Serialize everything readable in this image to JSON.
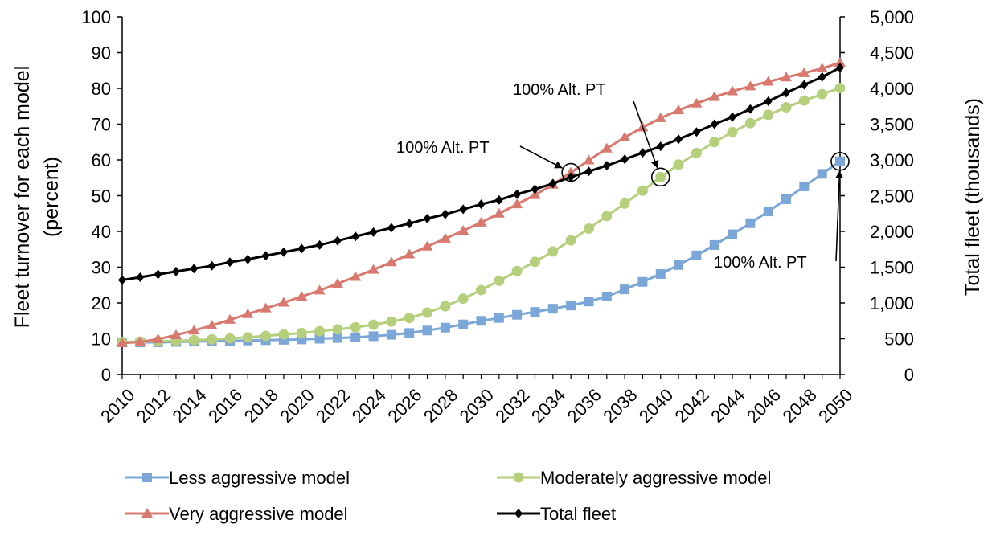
{
  "chart_data": {
    "type": "line",
    "x": [
      2010,
      2011,
      2012,
      2013,
      2014,
      2015,
      2016,
      2017,
      2018,
      2019,
      2020,
      2021,
      2022,
      2023,
      2024,
      2025,
      2026,
      2027,
      2028,
      2029,
      2030,
      2031,
      2032,
      2033,
      2034,
      2035,
      2036,
      2037,
      2038,
      2039,
      2040,
      2041,
      2042,
      2043,
      2044,
      2045,
      2046,
      2047,
      2048,
      2049,
      2050
    ],
    "x_tick_labels": [
      "2010",
      "2012",
      "2014",
      "2016",
      "2018",
      "2020",
      "2022",
      "2024",
      "2026",
      "2028",
      "2030",
      "2032",
      "2034",
      "2036",
      "2038",
      "2040",
      "2042",
      "2044",
      "2046",
      "2048",
      "2050"
    ],
    "ylabel": "Fleet turnover for each model",
    "ylabel_line2": "(percent)",
    "y2label": "Total fleet (thousands)",
    "ylim": [
      0,
      100
    ],
    "y2lim": [
      0,
      5000
    ],
    "y_ticks": [
      "0",
      "10",
      "20",
      "30",
      "40",
      "50",
      "60",
      "70",
      "80",
      "90",
      "100"
    ],
    "y2_ticks": [
      "0",
      "500",
      "1,000",
      "1,500",
      "2,000",
      "2,500",
      "3,000",
      "3,500",
      "4,000",
      "4,500",
      "5,000"
    ],
    "series": [
      {
        "name": "Less aggressive model",
        "axis": "left",
        "color": "#7ba6d8",
        "marker": "square",
        "values": [
          9,
          9,
          9,
          9.1,
          9.2,
          9.3,
          9.4,
          9.5,
          9.6,
          9.7,
          9.8,
          10,
          10.2,
          10.4,
          10.7,
          11.1,
          11.6,
          12.3,
          13.1,
          14,
          15,
          15.8,
          16.7,
          17.5,
          18.4,
          19.3,
          20.4,
          21.8,
          23.8,
          25.9,
          28.1,
          30.6,
          33.3,
          36.2,
          39.2,
          42.3,
          45.6,
          49,
          52.6,
          56.1,
          59.6
        ]
      },
      {
        "name": "Moderately aggressive model",
        "axis": "left",
        "color": "#b5cf7d",
        "marker": "circle",
        "values": [
          9.1,
          9.2,
          9.3,
          9.4,
          9.6,
          9.8,
          10.1,
          10.4,
          10.8,
          11.2,
          11.6,
          12.1,
          12.6,
          13.2,
          13.9,
          14.8,
          15.8,
          17.3,
          19.1,
          21.2,
          23.6,
          26.2,
          28.9,
          31.5,
          34.4,
          37.5,
          40.8,
          44.3,
          47.8,
          51.4,
          55.2,
          58.7,
          61.9,
          65,
          67.8,
          70.3,
          72.6,
          74.7,
          76.6,
          78.4,
          80.1
        ]
      },
      {
        "name": "Very aggressive model",
        "axis": "left",
        "color": "#d8786e",
        "marker": "triangle",
        "values": [
          8.8,
          9.1,
          9.9,
          11,
          12.3,
          13.7,
          15.3,
          16.9,
          18.5,
          20.1,
          21.8,
          23.5,
          25.4,
          27.3,
          29.3,
          31.4,
          33.6,
          35.8,
          38,
          40.2,
          42.5,
          45,
          47.6,
          50.2,
          53.1,
          56.5,
          59.9,
          63.2,
          66.3,
          69.1,
          71.7,
          73.9,
          75.8,
          77.6,
          79.2,
          80.6,
          81.9,
          83.1,
          84.3,
          85.6,
          87.2
        ]
      },
      {
        "name": "Total fleet",
        "axis": "right",
        "color": "#000000",
        "marker": "diamond",
        "values": [
          1320,
          1360,
          1400,
          1440,
          1480,
          1520,
          1570,
          1610,
          1660,
          1710,
          1760,
          1810,
          1870,
          1930,
          1990,
          2050,
          2110,
          2180,
          2240,
          2310,
          2380,
          2440,
          2520,
          2590,
          2670,
          2760,
          2840,
          2920,
          3010,
          3100,
          3190,
          3290,
          3390,
          3500,
          3600,
          3710,
          3820,
          3940,
          4050,
          4160,
          4290
        ]
      }
    ],
    "annotations": [
      {
        "text": "100% Alt. PT",
        "series_index": 2,
        "point_index": 25
      },
      {
        "text": "100% Alt. PT",
        "series_index": 1,
        "point_index": 30
      },
      {
        "text": "100% Alt. PT",
        "series_index": 0,
        "point_index": 40
      }
    ],
    "legend": {
      "placement": "bottom",
      "entries": [
        "Less aggressive model",
        "Moderately aggressive model",
        "Very aggressive model",
        "Total fleet"
      ]
    },
    "grid": false
  }
}
